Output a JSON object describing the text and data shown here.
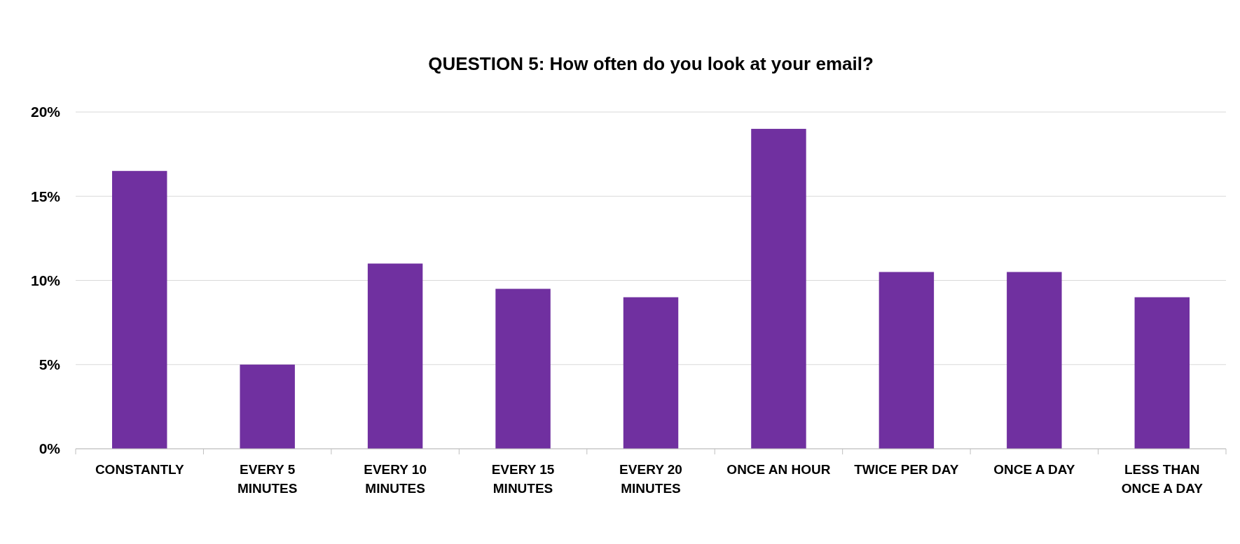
{
  "chart_data": {
    "type": "bar",
    "title": "QUESTION 5: How often do you look at your email?",
    "categories": [
      "CONSTANTLY",
      "EVERY 5 MINUTES",
      "EVERY 10 MINUTES",
      "EVERY 15 MINUTES",
      "EVERY 20 MINUTES",
      "ONCE AN HOUR",
      "TWICE PER DAY",
      "ONCE A DAY",
      "LESS THAN ONCE A DAY"
    ],
    "values": [
      16.5,
      5,
      11,
      9.5,
      9,
      19,
      10.5,
      10.5,
      9
    ],
    "color": "#7030a0",
    "ylim": [
      0,
      20
    ],
    "yticks": [
      {
        "value": 0,
        "label": "0%"
      },
      {
        "value": 5,
        "label": "5%"
      },
      {
        "value": 10,
        "label": "10%"
      },
      {
        "value": 15,
        "label": "15%"
      },
      {
        "value": 20,
        "label": "20%"
      }
    ],
    "grid": "y"
  }
}
